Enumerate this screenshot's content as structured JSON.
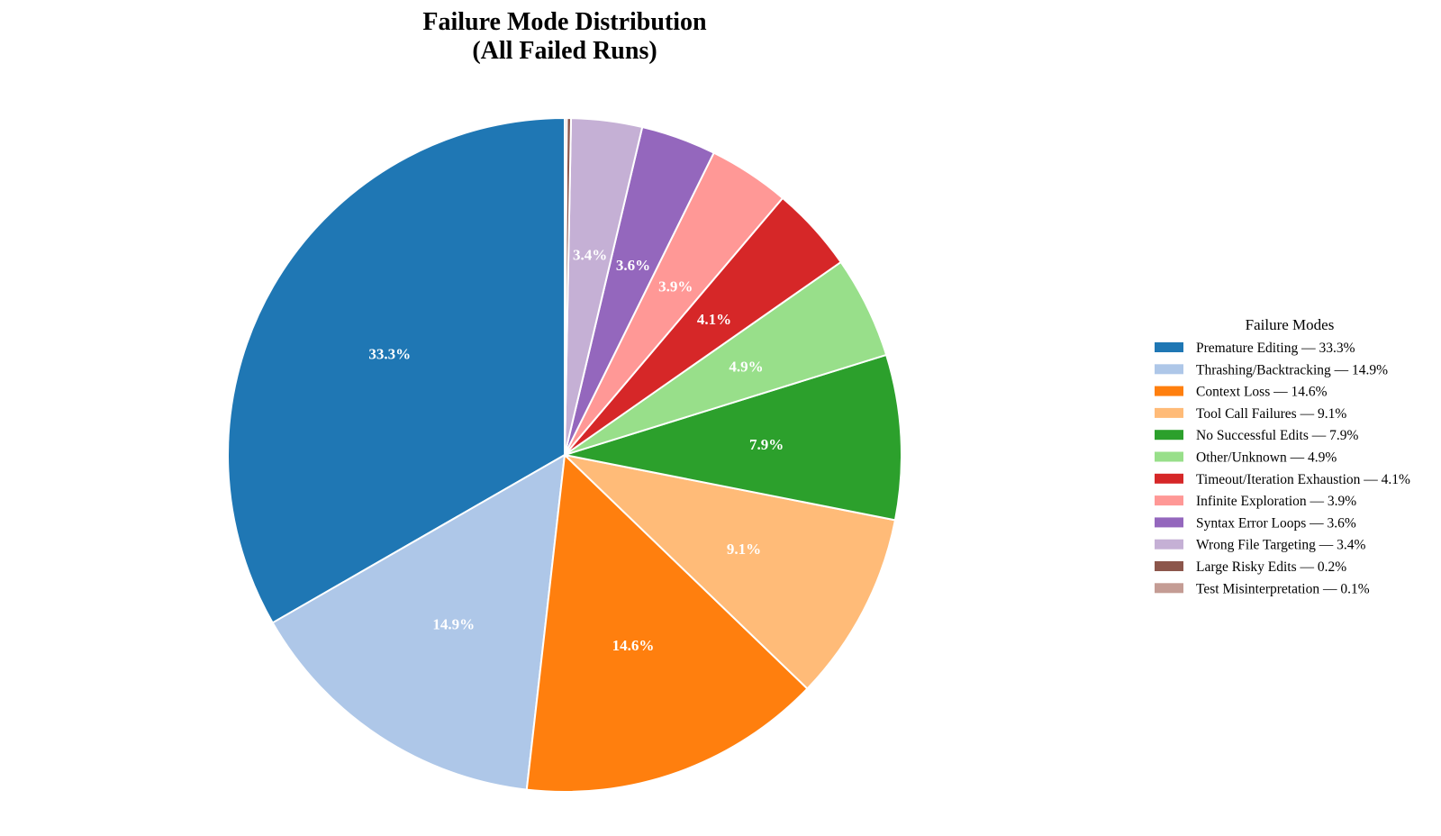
{
  "chart_data": {
    "type": "pie",
    "title_line1": "Failure Mode Distribution",
    "title_line2": "(All Failed Runs)",
    "legend_title": "Failure Modes",
    "legend_position": "right",
    "start_angle": "90 degrees (top)",
    "direction": "counterclockwise",
    "slices": [
      {
        "name": "Premature Editing",
        "value": 33.3,
        "label": "33.3%",
        "legend": "Premature Editing — 33.3%",
        "color": "#1f77b4"
      },
      {
        "name": "Thrashing/Backtracking",
        "value": 14.9,
        "label": "14.9%",
        "legend": "Thrashing/Backtracking — 14.9%",
        "color": "#aec7e8"
      },
      {
        "name": "Context Loss",
        "value": 14.6,
        "label": "14.6%",
        "legend": "Context Loss — 14.6%",
        "color": "#ff7f0e"
      },
      {
        "name": "Tool Call Failures",
        "value": 9.1,
        "label": "9.1%",
        "legend": "Tool Call Failures — 9.1%",
        "color": "#ffbb78"
      },
      {
        "name": "No Successful Edits",
        "value": 7.9,
        "label": "7.9%",
        "legend": "No Successful Edits — 7.9%",
        "color": "#2ca02c"
      },
      {
        "name": "Other/Unknown",
        "value": 4.9,
        "label": "4.9%",
        "legend": "Other/Unknown — 4.9%",
        "color": "#98df8a"
      },
      {
        "name": "Timeout/Iteration Exhaustion",
        "value": 4.1,
        "label": "4.1%",
        "legend": "Timeout/Iteration Exhaustion — 4.1%",
        "color": "#d62728"
      },
      {
        "name": "Infinite Exploration",
        "value": 3.9,
        "label": "3.9%",
        "legend": "Infinite Exploration — 3.9%",
        "color": "#ff9896"
      },
      {
        "name": "Syntax Error Loops",
        "value": 3.6,
        "label": "3.6%",
        "legend": "Syntax Error Loops — 3.6%",
        "color": "#9467bd"
      },
      {
        "name": "Wrong File Targeting",
        "value": 3.4,
        "label": "3.4%",
        "legend": "Wrong File Targeting — 3.4%",
        "color": "#c5b0d5"
      },
      {
        "name": "Large Risky Edits",
        "value": 0.2,
        "label": "",
        "legend": "Large Risky Edits — 0.2%",
        "color": "#8c564b"
      },
      {
        "name": "Test Misinterpretation",
        "value": 0.1,
        "label": "",
        "legend": "Test Misinterpretation — 0.1%",
        "color": "#c49c94"
      }
    ]
  }
}
